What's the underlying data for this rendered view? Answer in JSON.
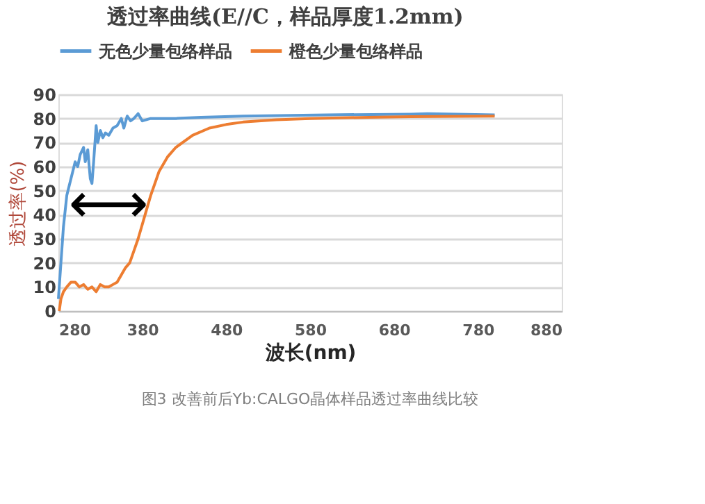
{
  "chart_data": {
    "type": "line",
    "title": "透过率曲线(E//C，样品厚度1.2mm)",
    "xlabel": "波长(nm)",
    "ylabel": "透过率(%)",
    "xlim": [
      280,
      880
    ],
    "xticks": [
      280,
      380,
      480,
      580,
      680,
      780,
      880
    ],
    "ylim": [
      0,
      90
    ],
    "yticks": [
      0,
      10,
      20,
      30,
      40,
      50,
      60,
      70,
      80,
      90
    ],
    "grid": "y",
    "legend": "top",
    "marker": "none",
    "line_style": "solid",
    "annotations": [
      "⟷",
      "图3 改善前后Yb:CALGO晶体样品透过率曲线比较"
    ],
    "series": [
      {
        "name": "无色少量包络样品",
        "color": "#5b9bd5",
        "x": [
          280,
          283,
          286,
          290,
          295,
          300,
          303,
          306,
          310,
          312,
          315,
          318,
          320,
          322,
          325,
          327,
          330,
          333,
          336,
          340,
          345,
          350,
          355,
          358,
          362,
          366,
          370,
          375,
          380,
          390,
          400,
          420,
          450,
          500,
          600,
          700,
          720,
          800
        ],
        "values": [
          5,
          20,
          35,
          48,
          55,
          62,
          60,
          65,
          68,
          62,
          67,
          55,
          53,
          62,
          77,
          70,
          75,
          72,
          74,
          73,
          76,
          77,
          80,
          76,
          81,
          79,
          80,
          82,
          79,
          80,
          80,
          80,
          80.5,
          81,
          81.5,
          81.8,
          82,
          81.5
        ]
      },
      {
        "name": "橙色少量包络样品",
        "color": "#ed7d31",
        "x": [
          281,
          283,
          286,
          290,
          295,
          300,
          305,
          310,
          315,
          320,
          325,
          330,
          335,
          340,
          345,
          350,
          355,
          360,
          365,
          370,
          375,
          380,
          385,
          390,
          400,
          410,
          420,
          440,
          460,
          480,
          500,
          540,
          580,
          650,
          700,
          800
        ],
        "values": [
          0,
          5,
          8,
          10,
          12,
          12,
          10,
          11,
          9,
          10,
          8,
          11,
          10,
          10,
          11,
          12,
          15,
          18,
          20,
          25,
          30,
          36,
          42,
          48,
          58,
          64,
          68,
          73,
          76,
          77.5,
          78.5,
          79.5,
          80,
          80.5,
          80.8,
          81
        ]
      }
    ]
  }
}
